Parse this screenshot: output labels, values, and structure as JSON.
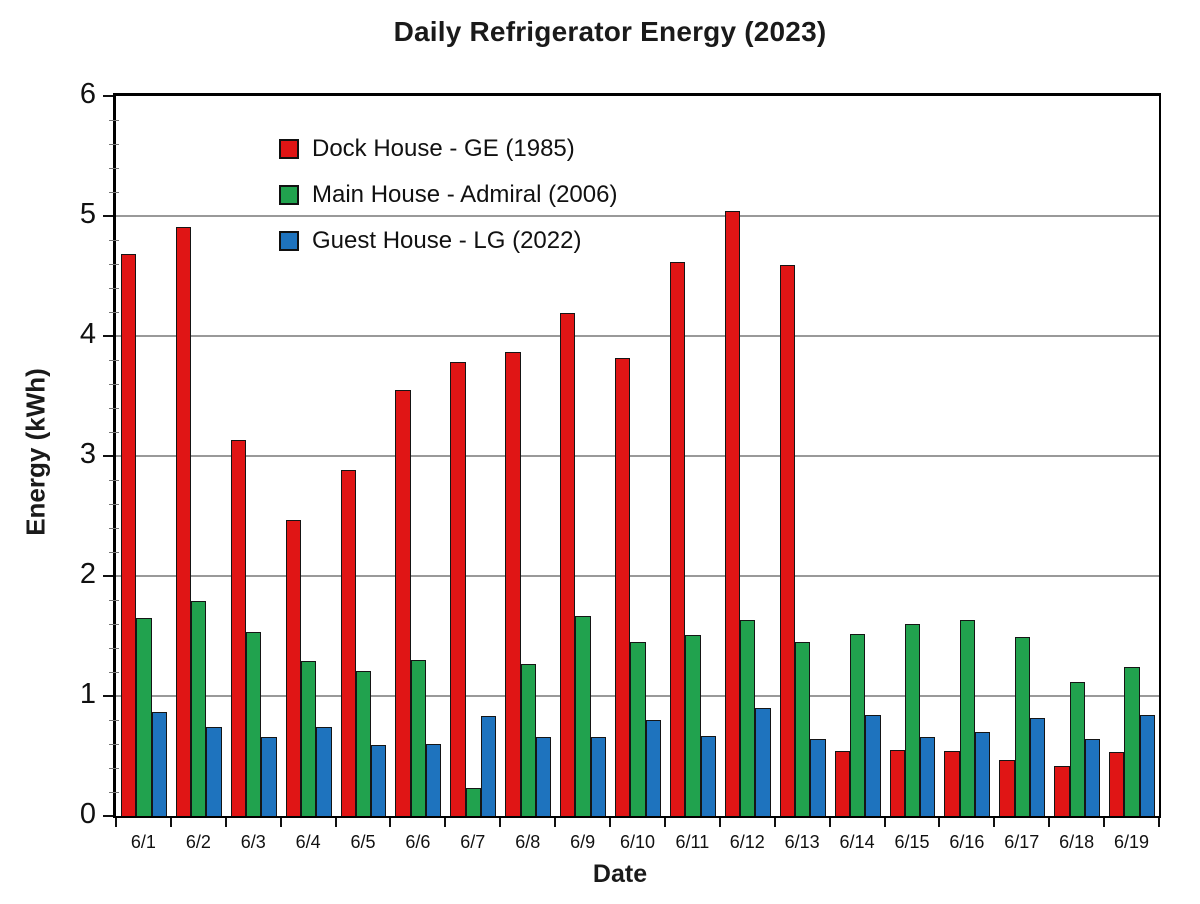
{
  "title": "Daily Refrigerator Energy (2023)",
  "axes": {
    "x_label": "Date",
    "y_label": "Energy (kWh)",
    "y_ticks": [
      "0",
      "1",
      "2",
      "3",
      "4",
      "5",
      "6"
    ],
    "y_major_step": 1,
    "y_minor_step": 0.2
  },
  "legend": {
    "position": "inside-top-left",
    "border": "none"
  },
  "chart_data": {
    "type": "bar",
    "title": "Daily Refrigerator Energy (2023)",
    "xlabel": "Date",
    "ylabel": "Energy (kWh)",
    "ylim": [
      0,
      6
    ],
    "grid": "horizontal major gridlines, gray",
    "legend_position": "inside top-left, no border",
    "categories": [
      "6/1",
      "6/2",
      "6/3",
      "6/4",
      "6/5",
      "6/6",
      "6/7",
      "6/8",
      "6/9",
      "6/10",
      "6/11",
      "6/12",
      "6/13",
      "6/14",
      "6/15",
      "6/16",
      "6/17",
      "6/18",
      "6/19"
    ],
    "series": [
      {
        "name": "Dock House - GE (1985)",
        "color": "#e01515",
        "values": [
          4.68,
          4.91,
          3.13,
          2.47,
          2.88,
          3.55,
          3.78,
          3.87,
          4.19,
          3.82,
          4.62,
          5.04,
          4.59,
          0.54,
          0.55,
          0.54,
          0.47,
          0.42,
          0.53
        ]
      },
      {
        "name": "Main House - Admiral (2006)",
        "color": "#21a24e",
        "values": [
          1.65,
          1.79,
          1.53,
          1.29,
          1.21,
          1.3,
          0.23,
          1.27,
          1.67,
          1.45,
          1.51,
          1.63,
          1.45,
          1.52,
          1.6,
          1.63,
          1.49,
          1.12,
          1.24
        ]
      },
      {
        "name": "Guest House - LG (2022)",
        "color": "#1e73be",
        "values": [
          0.87,
          0.74,
          0.66,
          0.74,
          0.59,
          0.6,
          0.83,
          0.66,
          0.66,
          0.8,
          0.67,
          0.9,
          0.64,
          0.84,
          0.66,
          0.7,
          0.82,
          0.64,
          0.84
        ]
      }
    ]
  }
}
